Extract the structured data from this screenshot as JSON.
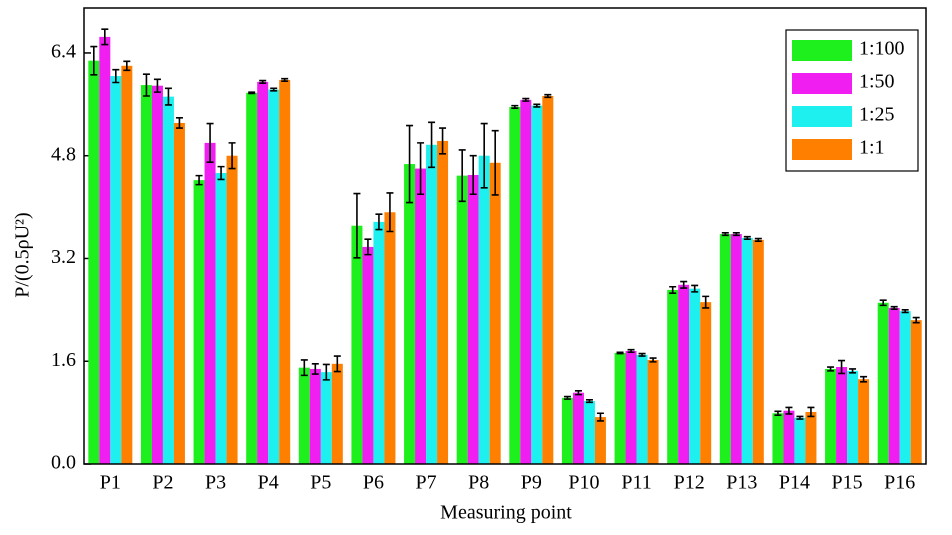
{
  "chart_data": {
    "type": "bar",
    "x_label": "Measuring point",
    "y_label": "P/(0.5ρU²)",
    "categories": [
      "P1",
      "P2",
      "P3",
      "P4",
      "P5",
      "P6",
      "P7",
      "P8",
      "P9",
      "P10",
      "P11",
      "P12",
      "P13",
      "P14",
      "P15",
      "P16"
    ],
    "series": [
      {
        "name": "1:100",
        "color": "#1ef01e",
        "values": [
          6.28,
          5.9,
          4.42,
          5.78,
          1.5,
          3.71,
          4.67,
          4.49,
          5.56,
          1.03,
          1.73,
          2.71,
          3.58,
          0.79,
          1.48,
          2.51
        ],
        "errors": [
          0.22,
          0.17,
          0.07,
          0.01,
          0.12,
          0.5,
          0.6,
          0.4,
          0.02,
          0.02,
          0.01,
          0.05,
          0.02,
          0.03,
          0.03,
          0.04
        ]
      },
      {
        "name": "1:50",
        "color": "#f01ef0",
        "values": [
          6.65,
          5.89,
          5.0,
          5.95,
          1.48,
          3.38,
          4.6,
          4.5,
          5.67,
          1.11,
          1.76,
          2.79,
          3.58,
          0.83,
          1.51,
          2.43
        ],
        "errors": [
          0.12,
          0.1,
          0.3,
          0.02,
          0.08,
          0.12,
          0.4,
          0.3,
          0.02,
          0.03,
          0.02,
          0.05,
          0.02,
          0.05,
          0.1,
          0.02
        ]
      },
      {
        "name": "1:25",
        "color": "#1ef0f0",
        "values": [
          6.04,
          5.72,
          4.53,
          5.83,
          1.43,
          3.77,
          4.97,
          4.8,
          5.58,
          0.98,
          1.7,
          2.73,
          3.52,
          0.72,
          1.45,
          2.38
        ],
        "errors": [
          0.1,
          0.13,
          0.1,
          0.02,
          0.12,
          0.12,
          0.35,
          0.5,
          0.02,
          0.02,
          0.02,
          0.05,
          0.02,
          0.02,
          0.03,
          0.02
        ]
      },
      {
        "name": "1:1",
        "color": "#ff8000",
        "values": [
          6.2,
          5.31,
          4.8,
          5.98,
          1.56,
          3.92,
          5.03,
          4.69,
          5.73,
          0.73,
          1.62,
          2.52,
          3.49,
          0.81,
          1.32,
          2.24
        ],
        "errors": [
          0.07,
          0.08,
          0.2,
          0.02,
          0.12,
          0.3,
          0.2,
          0.5,
          0.02,
          0.06,
          0.03,
          0.09,
          0.02,
          0.07,
          0.04,
          0.04
        ]
      }
    ],
    "ylim": [
      0,
      7.1
    ],
    "yticks": [
      {
        "value": 0,
        "label": "0.0"
      },
      1.6,
      3.2,
      4.8,
      6.4
    ],
    "legend": "upper right"
  }
}
